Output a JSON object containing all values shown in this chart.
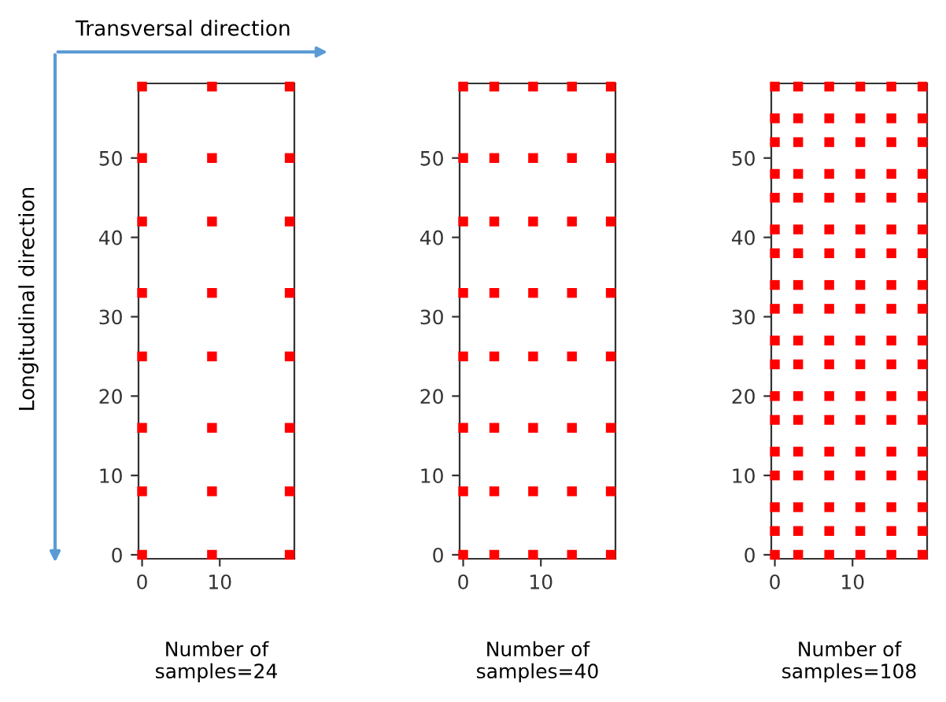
{
  "chart_data": [
    {
      "type": "scatter",
      "xlabel": "Number of\nsamples=24",
      "annotations": [
        "Transversal direction",
        "Longitudinal direction"
      ],
      "marker": "square",
      "grid": false,
      "xlim": [
        -0.46,
        19.6
      ],
      "ylim": [
        -0.5,
        59.4
      ],
      "xticks": [
        0,
        10
      ],
      "yticks": [
        0,
        10,
        20,
        30,
        40,
        50
      ],
      "series": [
        {
          "color": "#ff0000",
          "x": [
            0,
            9,
            19,
            0,
            9,
            19,
            0,
            9,
            19,
            0,
            9,
            19,
            0,
            9,
            19,
            0,
            9,
            19,
            0,
            9,
            19,
            0,
            9,
            19
          ],
          "values": [
            0,
            0,
            0,
            8,
            8,
            8,
            16,
            16,
            16,
            25,
            25,
            25,
            33,
            33,
            33,
            42,
            42,
            42,
            50,
            50,
            50,
            59,
            59,
            59
          ]
        }
      ]
    },
    {
      "type": "scatter",
      "xlabel": "Number of\nsamples=40",
      "marker": "square",
      "grid": false,
      "xlim": [
        -0.46,
        19.6
      ],
      "ylim": [
        -0.5,
        59.4
      ],
      "xticks": [
        0,
        10
      ],
      "yticks": [
        0,
        10,
        20,
        30,
        40,
        50
      ],
      "series": [
        {
          "color": "#ff0000",
          "x": [
            0,
            4,
            9,
            14,
            19,
            0,
            4,
            9,
            14,
            19,
            0,
            4,
            9,
            14,
            19,
            0,
            4,
            9,
            14,
            19,
            0,
            4,
            9,
            14,
            19,
            0,
            4,
            9,
            14,
            19,
            0,
            4,
            9,
            14,
            19,
            0,
            4,
            9,
            14,
            19
          ],
          "values": [
            0,
            0,
            0,
            0,
            0,
            8,
            8,
            8,
            8,
            8,
            16,
            16,
            16,
            16,
            16,
            25,
            25,
            25,
            25,
            25,
            33,
            33,
            33,
            33,
            33,
            42,
            42,
            42,
            42,
            42,
            50,
            50,
            50,
            50,
            50,
            59,
            59,
            59,
            59,
            59
          ]
        }
      ]
    },
    {
      "type": "scatter",
      "xlabel": "Number of\nsamples=108",
      "marker": "square",
      "grid": false,
      "xlim": [
        -0.46,
        19.6
      ],
      "ylim": [
        -0.5,
        59.4
      ],
      "xticks": [
        0,
        10
      ],
      "yticks": [
        0,
        10,
        20,
        30,
        40,
        50
      ],
      "series": [
        {
          "color": "#ff0000",
          "x": [
            0,
            3,
            7,
            11,
            15,
            19,
            0,
            3,
            7,
            11,
            15,
            19,
            0,
            3,
            7,
            11,
            15,
            19,
            0,
            3,
            7,
            11,
            15,
            19,
            0,
            3,
            7,
            11,
            15,
            19,
            0,
            3,
            7,
            11,
            15,
            19,
            0,
            3,
            7,
            11,
            15,
            19,
            0,
            3,
            7,
            11,
            15,
            19,
            0,
            3,
            7,
            11,
            15,
            19,
            0,
            3,
            7,
            11,
            15,
            19,
            0,
            3,
            7,
            11,
            15,
            19,
            0,
            3,
            7,
            11,
            15,
            19,
            0,
            3,
            7,
            11,
            15,
            19,
            0,
            3,
            7,
            11,
            15,
            19,
            0,
            3,
            7,
            11,
            15,
            19,
            0,
            3,
            7,
            11,
            15,
            19,
            0,
            3,
            7,
            11,
            15,
            19,
            0,
            3,
            7,
            11,
            15,
            19
          ],
          "values": [
            0,
            0,
            0,
            0,
            0,
            0,
            3,
            3,
            3,
            3,
            3,
            3,
            6,
            6,
            6,
            6,
            6,
            6,
            10,
            10,
            10,
            10,
            10,
            10,
            13,
            13,
            13,
            13,
            13,
            13,
            17,
            17,
            17,
            17,
            17,
            17,
            20,
            20,
            20,
            20,
            20,
            20,
            24,
            24,
            24,
            24,
            24,
            24,
            27,
            27,
            27,
            27,
            27,
            27,
            31,
            31,
            31,
            31,
            31,
            31,
            34,
            34,
            34,
            34,
            34,
            34,
            38,
            38,
            38,
            38,
            38,
            38,
            41,
            41,
            41,
            41,
            41,
            41,
            45,
            45,
            45,
            45,
            45,
            45,
            48,
            48,
            48,
            48,
            48,
            48,
            52,
            52,
            52,
            52,
            52,
            52,
            55,
            55,
            55,
            55,
            55,
            55,
            59,
            59,
            59,
            59,
            59,
            59
          ]
        }
      ]
    }
  ]
}
